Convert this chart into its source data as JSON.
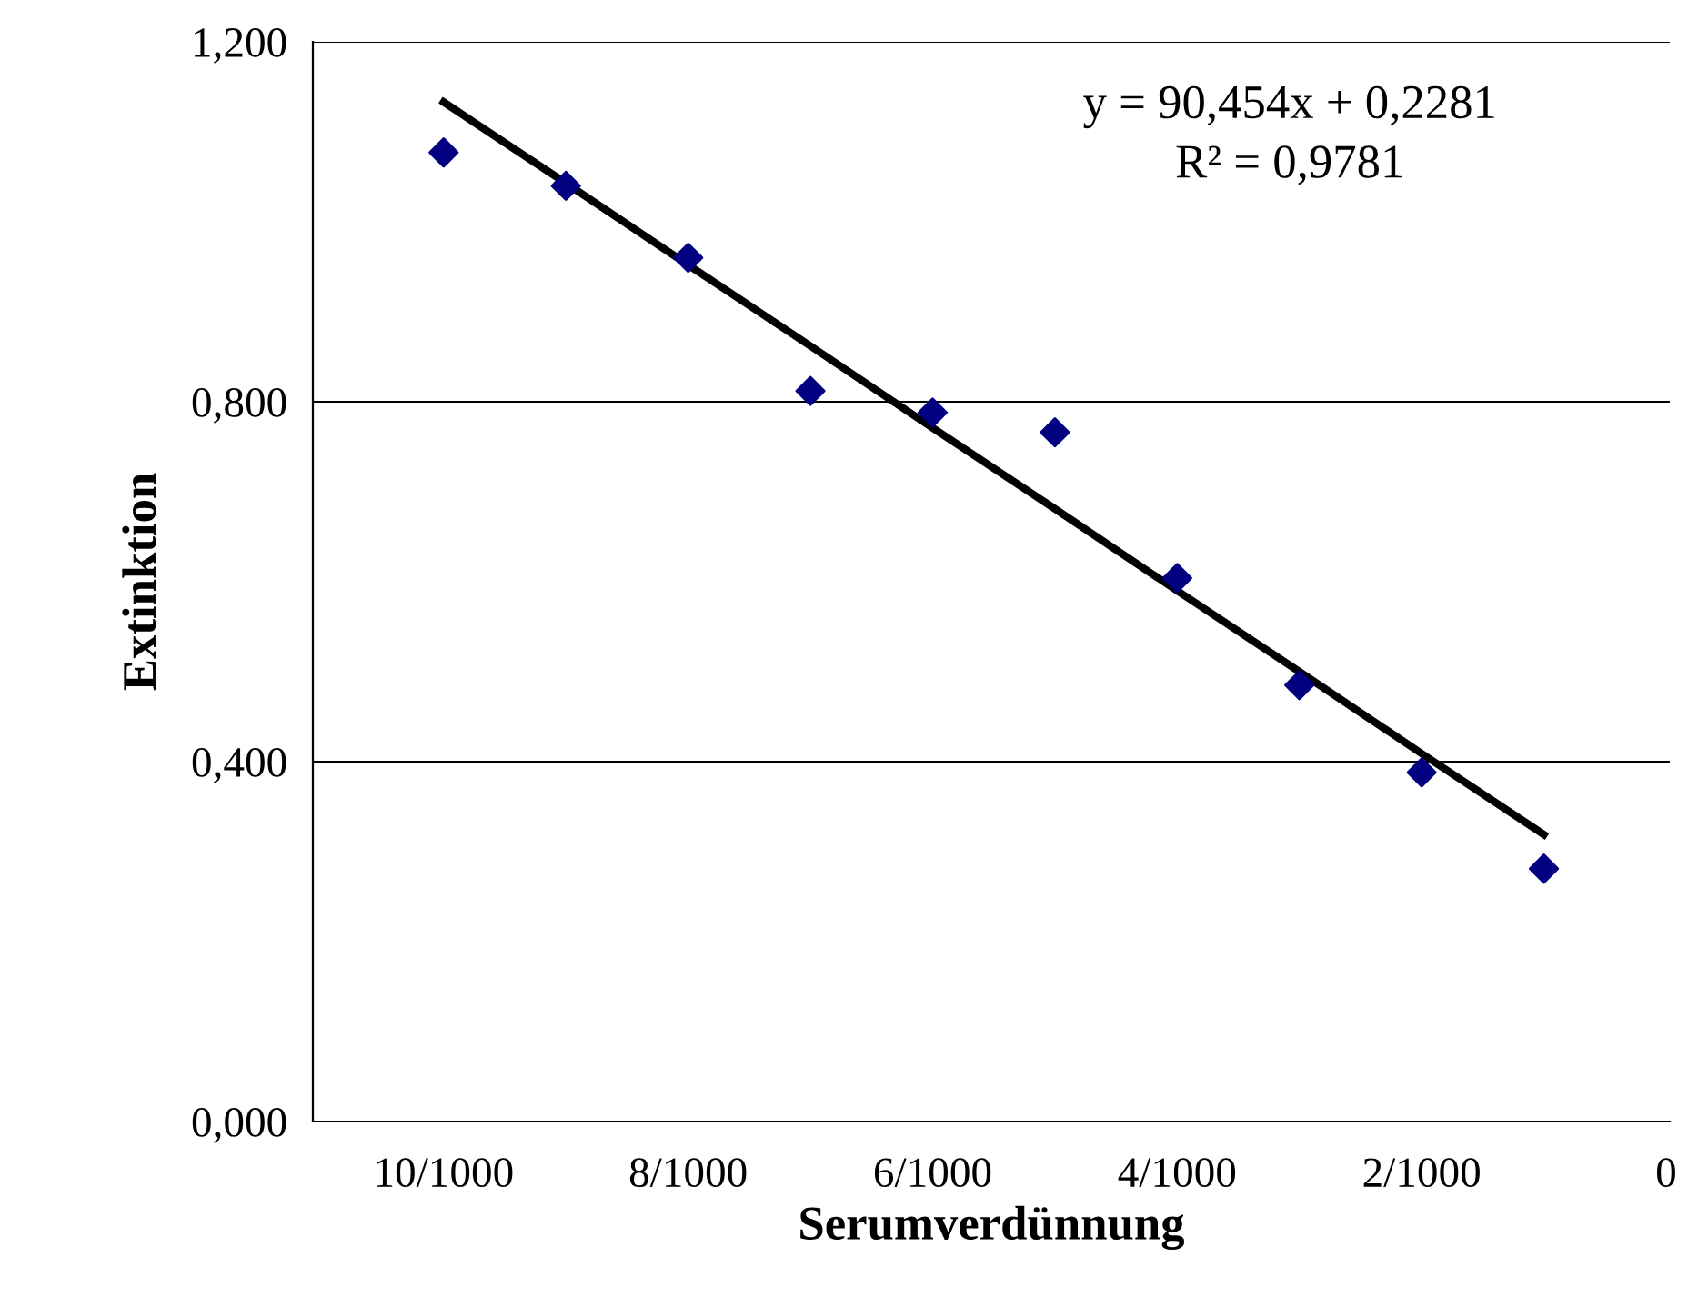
{
  "chart_data": {
    "type": "scatter",
    "xlabel": "Serumverdünnung",
    "ylabel": "Extinktion",
    "annotations": [
      "y = 90,454x + 0,2281",
      "R² = 0,9781"
    ],
    "categories": [
      "10/1000",
      null,
      "8/1000",
      null,
      "6/1000",
      null,
      "4/1000",
      null,
      "2/1000",
      null,
      "0"
    ],
    "series": [
      {
        "color": "#000080",
        "marker": "diamond",
        "values": [
          1.077,
          1.04,
          0.96,
          0.812,
          0.788,
          0.766,
          0.604,
          0.485,
          0.388,
          0.281,
          null
        ]
      },
      {
        "type": "line",
        "color": "#000000",
        "marker": "none",
        "line_style": "solid",
        "values": [
          1.133,
          1.043,
          0.952,
          0.862,
          0.771,
          0.681,
          0.59,
          0.5,
          0.409,
          0.319,
          null
        ]
      }
    ],
    "ylim": [
      0,
      1.2
    ],
    "yticks": [
      {
        "value": 0,
        "label": "0,000"
      },
      {
        "value": 0.4,
        "label": "0,400"
      },
      {
        "value": 0.8,
        "label": "0,800"
      },
      {
        "value": 1.2,
        "label": "1,200"
      }
    ],
    "grid": "y"
  }
}
